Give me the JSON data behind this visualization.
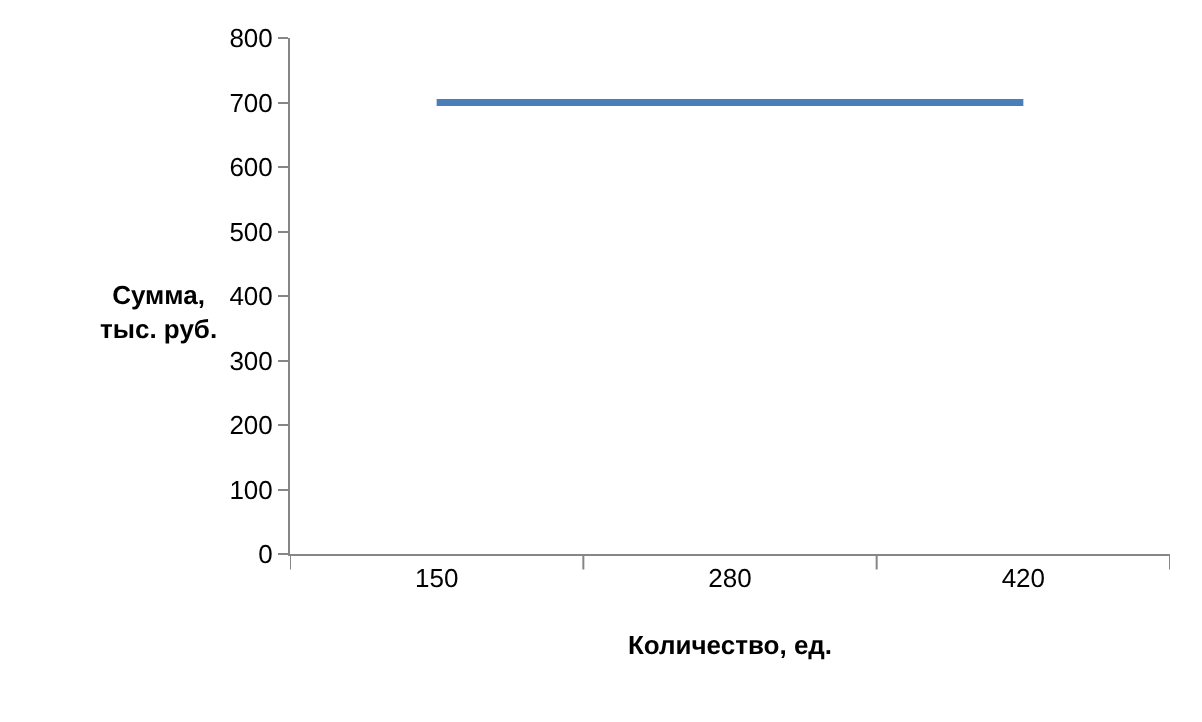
{
  "chart_data": {
    "type": "line",
    "xlabel": "Количество, ед.",
    "ylabel": "Сумма,\nтыс. руб.",
    "categories": [
      "150",
      "280",
      "420"
    ],
    "series": [
      {
        "color": "#4a7ebb",
        "values": [
          700,
          700,
          700
        ]
      }
    ],
    "ylim": [
      0,
      800
    ],
    "yticks": [
      0,
      100,
      200,
      300,
      400,
      500,
      600,
      700,
      800
    ],
    "marker": "none",
    "line_style": "solid"
  }
}
